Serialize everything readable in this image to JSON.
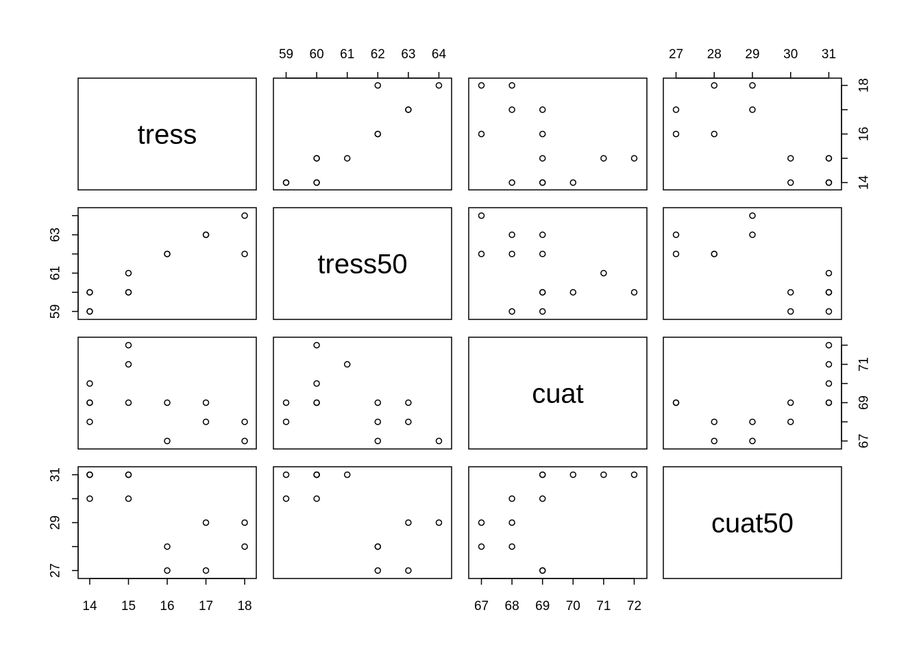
{
  "chart_data": {
    "type": "scatter",
    "variables": [
      "tress",
      "tress50",
      "cuat",
      "cuat50"
    ],
    "observations": [
      {
        "tress": 14,
        "tress50": 59,
        "cuat": 68,
        "cuat50": 30
      },
      {
        "tress": 14,
        "tress50": 60,
        "cuat": 69,
        "cuat50": 31
      },
      {
        "tress": 14,
        "tress50": 60,
        "cuat": 70,
        "cuat50": 31
      },
      {
        "tress": 15,
        "tress50": 60,
        "cuat": 72,
        "cuat50": 31
      },
      {
        "tress": 15,
        "tress50": 61,
        "cuat": 71,
        "cuat50": 31
      },
      {
        "tress": 15,
        "tress50": 60,
        "cuat": 69,
        "cuat50": 30
      },
      {
        "tress": 16,
        "tress50": 62,
        "cuat": 67,
        "cuat50": 28
      },
      {
        "tress": 16,
        "tress50": 62,
        "cuat": 69,
        "cuat50": 27
      },
      {
        "tress": 17,
        "tress50": 63,
        "cuat": 68,
        "cuat50": 29
      },
      {
        "tress": 17,
        "tress50": 63,
        "cuat": 69,
        "cuat50": 27
      },
      {
        "tress": 18,
        "tress50": 62,
        "cuat": 68,
        "cuat50": 28
      },
      {
        "tress": 18,
        "tress50": 64,
        "cuat": 67,
        "cuat50": 29
      },
      {
        "tress": 14,
        "tress50": 59,
        "cuat": 69,
        "cuat50": 31
      }
    ],
    "axes": {
      "tress": {
        "ticks": [
          14,
          15,
          16,
          17,
          18
        ],
        "range": [
          13.87,
          18.13
        ]
      },
      "tress50": {
        "ticks": [
          59,
          60,
          61,
          62,
          63,
          64
        ],
        "range": [
          58.8,
          64.2
        ]
      },
      "cuat": {
        "ticks": [
          67,
          68,
          69,
          70,
          71,
          72
        ],
        "range": [
          66.8,
          72.2
        ]
      },
      "cuat50": {
        "ticks": [
          27,
          28,
          29,
          30,
          31
        ],
        "range": [
          26.84,
          31.16
        ]
      }
    },
    "ytick_labels": {
      "tress": [
        14,
        16,
        18
      ],
      "tress50": [
        59,
        61,
        63
      ],
      "cuat": [
        67,
        69,
        71
      ],
      "cuat50": [
        27,
        29,
        31
      ]
    }
  }
}
